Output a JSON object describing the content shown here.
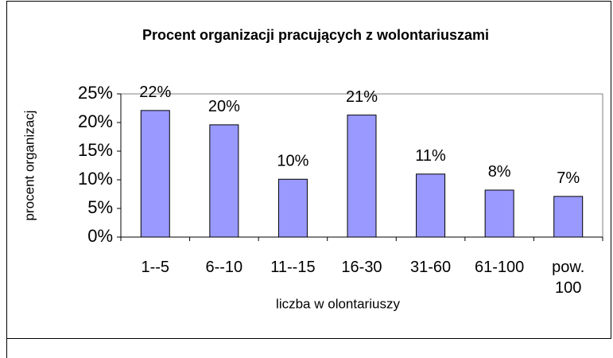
{
  "chart_data": {
    "type": "bar",
    "title": "Procent organizacji pracujących z wolontariuszami",
    "xlabel": "liczba w olontariuszy",
    "ylabel": "procent organizacj",
    "categories": [
      "1--5",
      "6--10",
      "11--15",
      "16-30",
      "31-60",
      "61-100",
      "pow. 100"
    ],
    "values": [
      22.1,
      19.6,
      10.1,
      21.3,
      11,
      8.2,
      7.1
    ],
    "value_labels": [
      "22%",
      "20%",
      "10%",
      "21%",
      "11%",
      "8%",
      "7%"
    ],
    "color": "#9999ff",
    "ylim": [
      0,
      25
    ],
    "yticks": [
      {
        "value": 0,
        "label": "0%"
      },
      {
        "value": 5,
        "label": "5%"
      },
      {
        "value": 10,
        "label": "10%"
      },
      {
        "value": 15,
        "label": "15%"
      },
      {
        "value": 20,
        "label": "20%"
      },
      {
        "value": 25,
        "label": "25%"
      }
    ]
  }
}
